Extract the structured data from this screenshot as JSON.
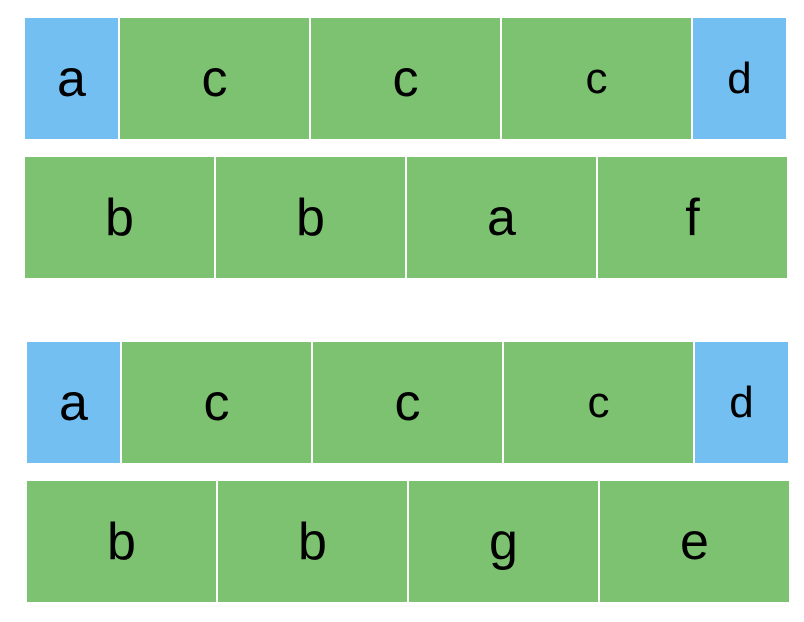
{
  "colors": {
    "accent_blue": "#74bff2",
    "accent_green": "#7dc271"
  },
  "groups": [
    {
      "top_row": [
        "a",
        "c",
        "c",
        "c",
        "d"
      ],
      "bottom_row": [
        "b",
        "b",
        "a",
        "f"
      ]
    },
    {
      "top_row": [
        "a",
        "c",
        "c",
        "c",
        "d"
      ],
      "bottom_row": [
        "b",
        "b",
        "g",
        "e"
      ]
    }
  ]
}
